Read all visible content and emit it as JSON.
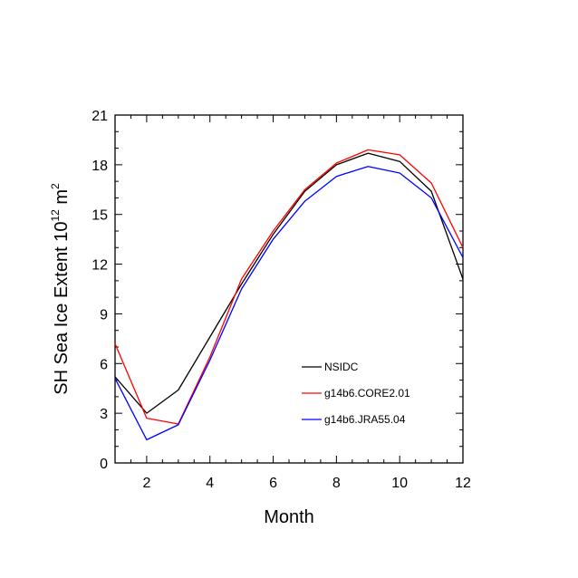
{
  "chart_data": {
    "type": "line",
    "title": "",
    "xlabel": "Month",
    "ylabel_main": "SH Sea Ice Extent 10",
    "ylabel_exp": "12",
    "ylabel_unit": " m",
    "ylabel_unit_exp": "2",
    "xlim": [
      1,
      12
    ],
    "ylim": [
      0,
      21
    ],
    "xticks": [
      2,
      4,
      6,
      8,
      10,
      12
    ],
    "yticks": [
      0,
      3,
      6,
      9,
      12,
      15,
      18,
      21
    ],
    "x": [
      1,
      2,
      3,
      4,
      5,
      6,
      7,
      8,
      9,
      10,
      11,
      12
    ],
    "series": [
      {
        "name": "NSIDC",
        "color": "#000000",
        "values": [
          5.2,
          3.0,
          4.4,
          7.6,
          10.8,
          13.8,
          16.4,
          18.0,
          18.7,
          18.2,
          16.4,
          11.1
        ]
      },
      {
        "name": "g14b6.CORE2.01",
        "color": "#ff0000",
        "values": [
          7.2,
          2.7,
          2.35,
          6.4,
          11.1,
          14.0,
          16.5,
          18.1,
          18.9,
          18.6,
          16.9,
          13.0
        ]
      },
      {
        "name": "g14b6.JRA55.04",
        "color": "#0000ff",
        "values": [
          5.1,
          1.4,
          2.3,
          6.2,
          10.5,
          13.5,
          15.8,
          17.3,
          17.9,
          17.5,
          16.0,
          12.4
        ]
      }
    ],
    "legend_position": "lower-right"
  }
}
